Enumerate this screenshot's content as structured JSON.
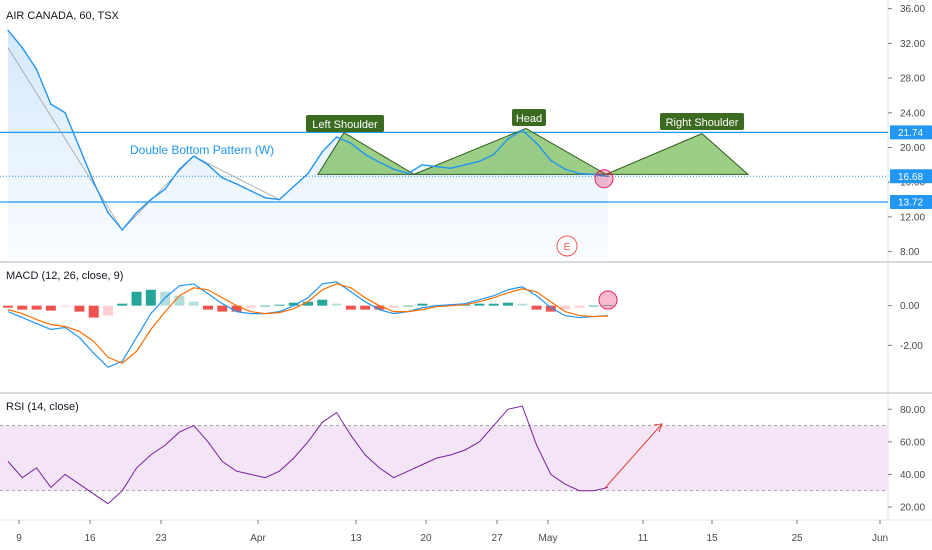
{
  "title": "AIR CANADA, 60, TSX",
  "colors": {
    "price_line": "#2196f3",
    "price_fill": "#cfe6fb",
    "macd_line": "#2196f3",
    "signal_line": "#ff6d00",
    "hist_up": "#26a69a",
    "hist_up_light": "#b2dfdb",
    "hist_down": "#ef5350",
    "hist_down_light": "#ffcdd2",
    "rsi_line": "#7b1fa2",
    "rsi_band": "#f3e5f5",
    "pattern_fill": "#7cbd5e",
    "pattern_stroke": "#2e5d1a",
    "annot_bg": "#3b6b21",
    "horizontal_line": "#2196f3",
    "arrow": "#e53935",
    "marker": "#e91e63"
  },
  "chart_data": [
    {
      "type": "line",
      "pane": "price",
      "title": "AIR CANADA, 60, TSX",
      "ylim": [
        6.8,
        37
      ],
      "yticks": [
        8.0,
        12.0,
        16.0,
        20.0,
        24.0,
        28.0,
        32.0,
        36.0
      ],
      "ytick_labels": [
        "8.00",
        "12.00",
        "16.00",
        "20.00",
        "24.00",
        "28.00",
        "32.00",
        "36.00"
      ],
      "price_tags": [
        {
          "value": 21.74,
          "label": "21.74"
        },
        {
          "value": 16.68,
          "label": "16.68"
        },
        {
          "value": 13.72,
          "label": "13.72"
        }
      ],
      "x": [
        "Mar 9",
        "Mar 10",
        "Mar 11",
        "Mar 12",
        "Mar 13",
        "Mar 16",
        "Mar 17",
        "Mar 18",
        "Mar 19",
        "Mar 20",
        "Mar 23",
        "Mar 24",
        "Mar 25",
        "Mar 26",
        "Mar 27",
        "Mar 30",
        "Mar 31",
        "Apr 1",
        "Apr 2",
        "Apr 3",
        "Apr 6",
        "Apr 7",
        "Apr 8",
        "Apr 9",
        "Apr 13",
        "Apr 14",
        "Apr 15",
        "Apr 16",
        "Apr 17",
        "Apr 20",
        "Apr 21",
        "Apr 22",
        "Apr 23",
        "Apr 24",
        "Apr 27",
        "Apr 28",
        "Apr 29",
        "Apr 30",
        "May 1",
        "May 4",
        "May 5",
        "May 6",
        "May 7"
      ],
      "values": [
        33.5,
        31.5,
        29.0,
        25.0,
        24.0,
        20.0,
        16.0,
        12.5,
        10.5,
        12.5,
        14.0,
        15.2,
        17.5,
        19.0,
        18.0,
        16.5,
        15.8,
        15.0,
        14.2,
        14.0,
        15.5,
        17.0,
        19.5,
        21.2,
        20.5,
        19.2,
        18.3,
        17.5,
        17.0,
        18.0,
        17.8,
        17.6,
        18.0,
        18.4,
        19.2,
        21.0,
        22.0,
        20.5,
        18.5,
        17.5,
        17.0,
        16.9,
        16.68
      ],
      "annotations": [
        {
          "text": "Double Bottom Pattern (W)"
        },
        {
          "text": "Left Shoulder"
        },
        {
          "text": "Head"
        },
        {
          "text": "Right Shoulder"
        },
        {
          "text": "E"
        }
      ]
    },
    {
      "type": "line",
      "pane": "macd",
      "title": "MACD (12, 26, close, 9)",
      "ylim": [
        -4.4,
        2.2
      ],
      "yticks": [
        0.0,
        -2.0
      ],
      "ytick_labels": [
        "0.00",
        "-2.00"
      ],
      "series": [
        {
          "name": "MACD",
          "values": [
            -0.3,
            -0.6,
            -0.9,
            -1.2,
            -1.1,
            -1.6,
            -2.4,
            -3.1,
            -2.8,
            -1.6,
            -0.4,
            0.4,
            1.0,
            1.1,
            0.6,
            0.1,
            -0.3,
            -0.4,
            -0.4,
            -0.3,
            0.0,
            0.4,
            1.1,
            1.2,
            0.7,
            0.2,
            -0.2,
            -0.4,
            -0.3,
            -0.1,
            0.0,
            0.05,
            0.1,
            0.3,
            0.5,
            0.8,
            0.95,
            0.5,
            -0.1,
            -0.5,
            -0.6,
            -0.55,
            -0.5
          ]
        },
        {
          "name": "Signal",
          "values": [
            -0.2,
            -0.4,
            -0.7,
            -0.95,
            -1.05,
            -1.3,
            -1.8,
            -2.6,
            -2.9,
            -2.3,
            -1.2,
            -0.3,
            0.5,
            0.9,
            0.8,
            0.4,
            0.0,
            -0.3,
            -0.4,
            -0.35,
            -0.15,
            0.2,
            0.8,
            1.1,
            0.9,
            0.4,
            0.0,
            -0.3,
            -0.3,
            -0.2,
            -0.05,
            0.0,
            0.05,
            0.2,
            0.4,
            0.65,
            0.85,
            0.7,
            0.2,
            -0.3,
            -0.5,
            -0.55,
            -0.52
          ]
        },
        {
          "name": "Histogram",
          "values": [
            -0.1,
            -0.2,
            -0.2,
            -0.25,
            -0.05,
            -0.3,
            -0.6,
            -0.5,
            0.1,
            0.7,
            0.8,
            0.7,
            0.5,
            0.2,
            -0.2,
            -0.3,
            -0.3,
            -0.1,
            0.0,
            0.05,
            0.15,
            0.2,
            0.3,
            0.1,
            -0.2,
            -0.2,
            -0.2,
            -0.1,
            0.0,
            0.1,
            0.05,
            0.05,
            0.05,
            0.1,
            0.1,
            0.15,
            0.1,
            -0.2,
            -0.3,
            -0.2,
            -0.1,
            0.0,
            0.02
          ]
        }
      ]
    },
    {
      "type": "line",
      "pane": "rsi",
      "title": "RSI (14, close)",
      "ylim": [
        12,
        90
      ],
      "yticks": [
        80.0,
        60.0,
        40.0,
        20.0
      ],
      "ytick_labels": [
        "80.00",
        "60.00",
        "40.00",
        "20.00"
      ],
      "band": [
        30,
        70
      ],
      "series": [
        {
          "name": "RSI",
          "values": [
            48,
            38,
            44,
            32,
            40,
            34,
            28,
            22,
            30,
            44,
            52,
            58,
            66,
            70,
            60,
            48,
            42,
            40,
            38,
            42,
            50,
            60,
            72,
            78,
            64,
            52,
            44,
            38,
            42,
            46,
            50,
            52,
            55,
            60,
            70,
            80,
            82,
            58,
            40,
            34,
            30,
            30,
            32
          ]
        }
      ]
    }
  ],
  "x_axis": {
    "tick_labels": [
      "9",
      "16",
      "23",
      "Apr",
      "13",
      "20",
      "27",
      "May",
      "11",
      "15",
      "25",
      "Jun"
    ]
  }
}
